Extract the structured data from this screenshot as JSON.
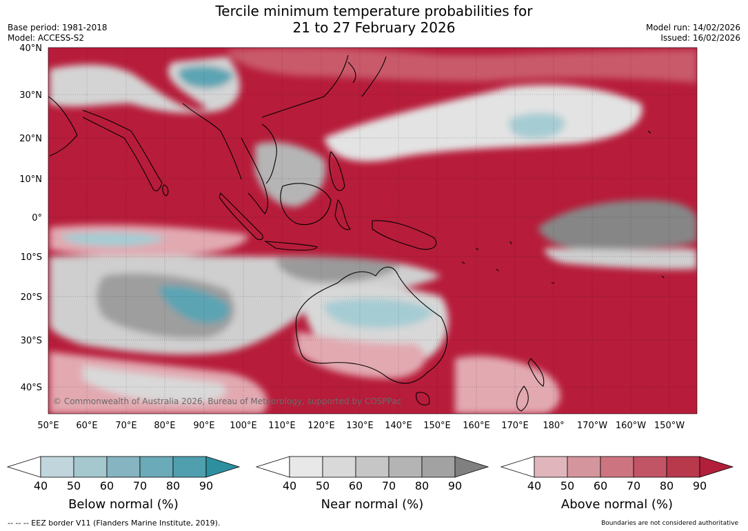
{
  "title": {
    "line1": "Tercile minimum temperature probabilities for",
    "line2": "21 to 27 February 2026"
  },
  "meta": {
    "base_period": "Base period: 1981-2018",
    "model": "Model: ACCESS-S2",
    "model_run": "Model run: 14/02/2026",
    "issued": "Issued: 16/02/2026"
  },
  "map": {
    "lat_labels": [
      "40°N",
      "30°N",
      "20°N",
      "10°N",
      "0°",
      "10°S",
      "20°S",
      "30°S",
      "40°S"
    ],
    "lon_labels": [
      "50°E",
      "60°E",
      "70°E",
      "80°E",
      "90°E",
      "100°E",
      "110°E",
      "120°E",
      "130°E",
      "140°E",
      "150°E",
      "160°E",
      "170°E",
      "180°",
      "170°W",
      "160°W",
      "150°W"
    ],
    "copyright": "© Commonwealth of Australia 2026, Bureau of Meteorology, supported by COSPPac",
    "colors": {
      "above_strong": "#b71c3a",
      "above_mid": "#c95a6a",
      "above_light": "#e2a9b1",
      "near_light": "#e3e3e3",
      "near_mid": "#b5b5b5",
      "near_dark": "#868686",
      "below_light": "#a6ccd3",
      "below_mid": "#5ca4b4",
      "land_outline": "#000000"
    }
  },
  "legends": [
    {
      "name": "below",
      "label": "Below normal (%)",
      "ticks": [
        "40",
        "50",
        "60",
        "70",
        "80",
        "90"
      ],
      "colors": [
        "#c0d6dc",
        "#a4c8cd",
        "#86b4c0",
        "#6aaab9",
        "#4f9fae",
        "#2e8f9f"
      ]
    },
    {
      "name": "near",
      "label": "Near normal (%)",
      "ticks": [
        "40",
        "50",
        "60",
        "70",
        "80",
        "90"
      ],
      "colors": [
        "#e8e8e8",
        "#d9d9d9",
        "#c6c6c6",
        "#b4b4b4",
        "#a2a2a2",
        "#808080"
      ]
    },
    {
      "name": "above",
      "label": "Above normal (%)",
      "ticks": [
        "40",
        "50",
        "60",
        "70",
        "80",
        "90"
      ],
      "colors": [
        "#e0b6bc",
        "#d4959d",
        "#cc7580",
        "#c25565",
        "#b8384c",
        "#b21f3a"
      ]
    }
  ],
  "footer": {
    "eez": "--  --  -- EEZ border V11 (Flanders Marine Institute, 2019).",
    "disclaimer": "Boundaries are not considered authoritative"
  }
}
